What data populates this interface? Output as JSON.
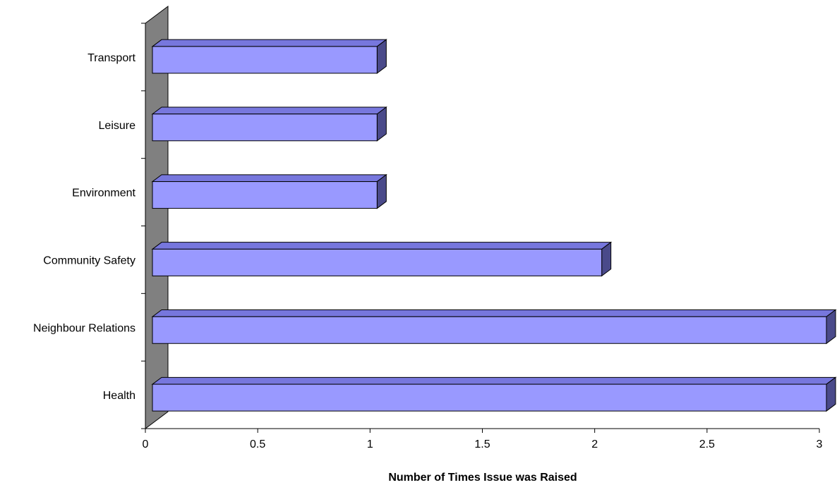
{
  "chart_data": {
    "type": "bar",
    "orientation": "horizontal",
    "style": "3d",
    "categories": [
      "Health",
      "Neighbour Relations",
      "Community Safety",
      "Environment",
      "Leisure",
      "Transport"
    ],
    "values": [
      3,
      3,
      2,
      1,
      1,
      1
    ],
    "xlabel": "Number of Times Issue was Raised",
    "ylabel": "",
    "xlim": [
      0,
      3
    ],
    "xticks": [
      0,
      0.5,
      1,
      1.5,
      2,
      2.5,
      3
    ],
    "xtick_labels": [
      "0",
      "0.5",
      "1",
      "1.5",
      "2",
      "2.5",
      "3"
    ],
    "grid": false,
    "legend": "none",
    "colors": {
      "bar_front": "#9999ff",
      "bar_top": "#7777dd",
      "bar_side": "#4a4a8a",
      "wall": "#808080"
    }
  }
}
